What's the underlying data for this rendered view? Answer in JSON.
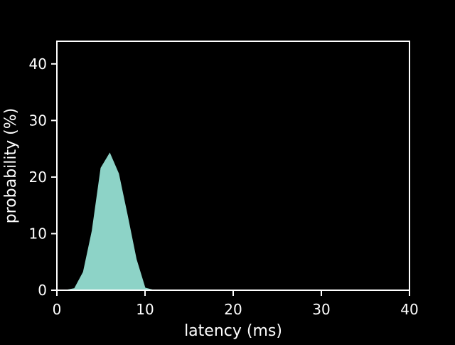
{
  "chart_data": {
    "type": "area",
    "title": "",
    "xlabel": "latency (ms)",
    "ylabel": "probability (%)",
    "xlim": [
      0,
      40
    ],
    "ylim": [
      0,
      44
    ],
    "xticks": [
      0,
      10,
      20,
      30,
      40
    ],
    "yticks": [
      0,
      10,
      20,
      30,
      40
    ],
    "grid": false,
    "series": [
      {
        "color": "#8dd3c7",
        "x": [
          0,
          1,
          2,
          3,
          4,
          5,
          6,
          7,
          8,
          9,
          10,
          11,
          12,
          13,
          14,
          15,
          16,
          17,
          18,
          19,
          20,
          21,
          22,
          23,
          24,
          25,
          26,
          27,
          28,
          29,
          30,
          31,
          32,
          33,
          34,
          35,
          36,
          37,
          38,
          39,
          40
        ],
        "y": [
          0,
          0,
          0.3,
          3.2,
          10.5,
          21.6,
          24.2,
          20.6,
          13.2,
          5.5,
          0.4,
          0,
          0,
          0,
          0,
          0,
          0,
          0,
          0,
          0,
          0,
          0,
          0,
          0,
          0,
          0,
          0,
          0,
          0,
          0,
          0,
          0,
          0,
          0,
          0,
          0,
          0,
          0,
          0,
          0,
          0
        ]
      }
    ]
  },
  "colors": {
    "background": "#000000",
    "axes": "#ffffff",
    "fill": "#8dd3c7"
  }
}
